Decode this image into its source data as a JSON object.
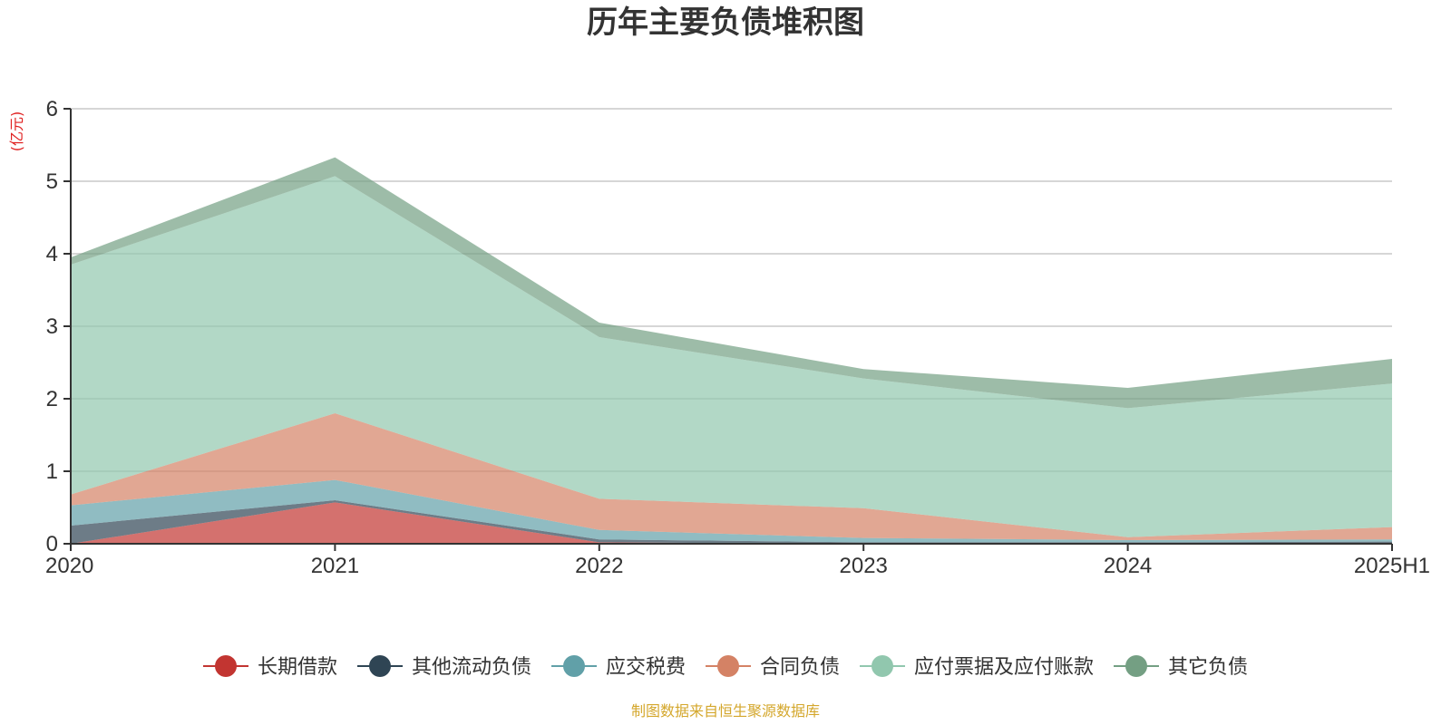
{
  "chart_data": {
    "type": "area",
    "stacked": true,
    "title": "历年主要负债堆积图",
    "unit_label": "(亿元)",
    "source_note": "制图数据来自恒生聚源数据库",
    "categories": [
      "2020",
      "2021",
      "2022",
      "2023",
      "2024",
      "2025H1"
    ],
    "ylim": [
      0,
      6
    ],
    "yticks": [
      0,
      1,
      2,
      3,
      4,
      5,
      6
    ],
    "grid": true,
    "legend_position": "bottom",
    "series": [
      {
        "name": "长期借款",
        "color": "#c23531",
        "values": [
          0.0,
          0.57,
          0.02,
          0.0,
          0.0,
          0.0
        ]
      },
      {
        "name": "其他流动负债",
        "color": "#2f4554",
        "values": [
          0.25,
          0.03,
          0.04,
          0.02,
          0.02,
          0.03
        ]
      },
      {
        "name": "应交税费",
        "color": "#61a0a8",
        "values": [
          0.28,
          0.28,
          0.13,
          0.06,
          0.03,
          0.03
        ]
      },
      {
        "name": "合同负债",
        "color": "#d48265",
        "values": [
          0.15,
          0.92,
          0.43,
          0.41,
          0.04,
          0.17
        ]
      },
      {
        "name": "应付票据及应付账款",
        "color": "#91c7ae",
        "values": [
          3.17,
          3.27,
          2.23,
          1.79,
          1.78,
          1.98
        ]
      },
      {
        "name": "其它负债",
        "color": "#749f83",
        "values": [
          0.1,
          0.26,
          0.2,
          0.13,
          0.28,
          0.34
        ]
      }
    ]
  }
}
